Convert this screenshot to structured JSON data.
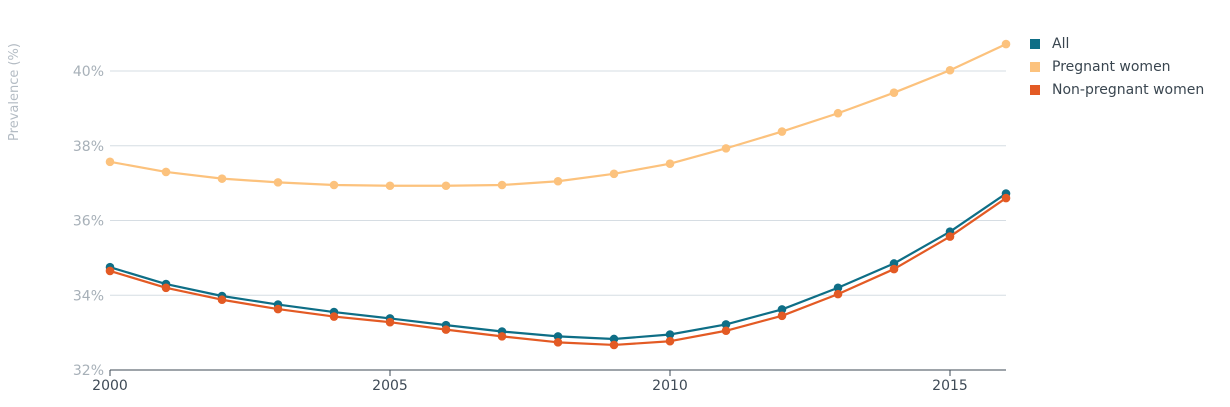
{
  "chart_data": {
    "type": "line",
    "ylabel": "Prevalence (%)",
    "xlabel": "",
    "x": [
      2000,
      2001,
      2002,
      2003,
      2004,
      2005,
      2006,
      2007,
      2008,
      2009,
      2010,
      2011,
      2012,
      2013,
      2014,
      2015,
      2016
    ],
    "xlim": [
      2000,
      2016
    ],
    "ylim": [
      32,
      41
    ],
    "xticks": [
      2000,
      2005,
      2010,
      2015
    ],
    "xtick_labels": [
      "2000",
      "2005",
      "2010",
      "2015"
    ],
    "yticks": [
      32,
      34,
      36,
      38,
      40
    ],
    "ytick_labels": [
      "32%",
      "34%",
      "36%",
      "38%",
      "40%"
    ],
    "grid": "horizontal",
    "legend_position": "top-right",
    "series": [
      {
        "name": "All",
        "color": "#0e6e86",
        "values": [
          34.75,
          34.3,
          33.98,
          33.75,
          33.55,
          33.38,
          33.2,
          33.03,
          32.9,
          32.83,
          32.95,
          33.22,
          33.62,
          34.2,
          34.85,
          35.7,
          36.72
        ]
      },
      {
        "name": "Pregnant women",
        "color": "#fcc27d",
        "values": [
          37.57,
          37.3,
          37.12,
          37.02,
          36.95,
          36.93,
          36.93,
          36.95,
          37.05,
          37.25,
          37.52,
          37.93,
          38.38,
          38.87,
          39.42,
          40.02,
          40.72
        ]
      },
      {
        "name": "Non-pregnant women",
        "color": "#e35a24",
        "values": [
          34.65,
          34.2,
          33.88,
          33.63,
          33.43,
          33.28,
          33.08,
          32.9,
          32.74,
          32.67,
          32.77,
          33.05,
          33.45,
          34.03,
          34.7,
          35.57,
          36.6
        ]
      }
    ]
  }
}
